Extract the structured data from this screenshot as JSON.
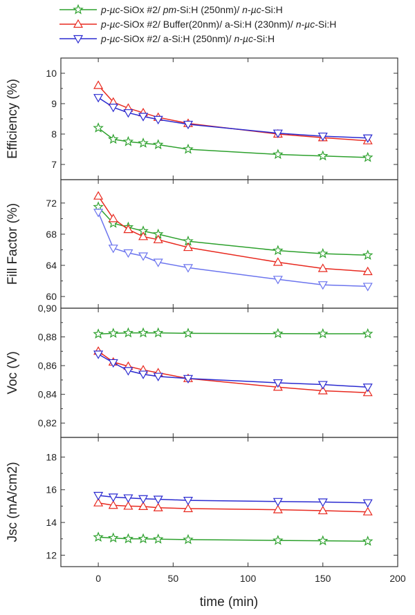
{
  "chart_data": {
    "type": "line",
    "title": "",
    "xlabel": "time (min)",
    "xlim": [
      -25,
      200
    ],
    "xticks": [
      "0",
      "50",
      "100",
      "150",
      "200"
    ],
    "x": [
      0,
      10,
      20,
      30,
      40,
      60,
      120,
      150,
      180
    ],
    "legend": [
      {
        "name": "p-µc-SiOx #2/ pm-Si:H (250nm)/ n-µc-Si:H",
        "color": "#2ca02c",
        "marker": "star",
        "parts": [
          [
            "p-µc",
            1
          ],
          [
            "-SiOx #2/ ",
            0
          ],
          [
            "pm",
            1
          ],
          [
            "-Si:H (250nm)/ ",
            0
          ],
          [
            "n-µc",
            1
          ],
          [
            "-Si:H",
            0
          ]
        ]
      },
      {
        "name": "p-µc-SiOx #2/ Buffer(20nm)/ a-Si:H (230nm)/ n-µc-Si:H",
        "color": "#e8281e",
        "marker": "triangle-up",
        "parts": [
          [
            "p-µc",
            1
          ],
          [
            "-SiOx #2/ Buffer(20nm)/ a-Si:H (230nm)/ ",
            0
          ],
          [
            "n-µc",
            1
          ],
          [
            "-Si:H",
            0
          ]
        ]
      },
      {
        "name": "p-µc-SiOx #2/ a-Si:H (250nm)/ n-µc-Si:H",
        "color": "#2a2ad0",
        "marker": "triangle-down",
        "parts": [
          [
            "p-µc",
            1
          ],
          [
            "-SiOx #2/ a-Si:H (250nm)/ ",
            0
          ],
          [
            "n-µc",
            1
          ],
          [
            "-Si:H",
            0
          ]
        ]
      }
    ],
    "panels": [
      {
        "ylabel": "Efficiency (%)",
        "ylim": [
          6.5,
          10.5
        ],
        "yticks": [
          7,
          8,
          9,
          10
        ],
        "ytick_labels": [
          "7",
          "8",
          "9",
          "10"
        ],
        "series": [
          {
            "name": "pm-Si:H (250nm)",
            "color": "#2ca02c",
            "marker": "star",
            "values": [
              8.2,
              7.83,
              7.75,
              7.7,
              7.65,
              7.5,
              7.33,
              7.28,
              7.23
            ]
          },
          {
            "name": "Buffer(20nm)/ a-Si:H (230nm)",
            "color": "#e8281e",
            "marker": "triangle-up",
            "values": [
              9.6,
              9.05,
              8.85,
              8.7,
              8.55,
              8.35,
              8.0,
              7.88,
              7.78
            ]
          },
          {
            "name": "a-Si:H (250nm)",
            "color": "#2a2ad0",
            "marker": "triangle-down",
            "values": [
              9.2,
              8.88,
              8.7,
              8.58,
              8.48,
              8.32,
              8.03,
              7.93,
              7.87
            ]
          }
        ]
      },
      {
        "ylabel": "Fill Factor (%)",
        "ylim": [
          58.5,
          75
        ],
        "yticks": [
          60,
          64,
          68,
          72
        ],
        "ytick_labels": [
          "60",
          "64",
          "68",
          "72"
        ],
        "series": [
          {
            "name": "pm-Si:H (250nm)",
            "color": "#2ca02c",
            "marker": "star",
            "values": [
              71.5,
              69.4,
              68.9,
              68.4,
              68.0,
              67.1,
              65.9,
              65.5,
              65.3
            ]
          },
          {
            "name": "Buffer(20nm)/ a-Si:H (230nm)",
            "color": "#e8281e",
            "marker": "triangle-up",
            "values": [
              72.9,
              70.0,
              68.6,
              67.7,
              67.3,
              66.3,
              64.4,
              63.6,
              63.2
            ]
          },
          {
            "name": "a-Si:H (250nm)",
            "color": "#6b74ee",
            "marker": "triangle-down",
            "values": [
              70.8,
              66.2,
              65.6,
              65.2,
              64.4,
              63.7,
              62.2,
              61.5,
              61.3
            ]
          }
        ]
      },
      {
        "ylabel": "Voc (V)",
        "ylim": [
          0.81,
          0.9
        ],
        "yticks": [
          0.82,
          0.84,
          0.86,
          0.88,
          0.9
        ],
        "ytick_labels": [
          "0,82",
          "0,84",
          "0,86",
          "0,88",
          "0,90"
        ],
        "series": [
          {
            "name": "pm-Si:H (250nm)",
            "color": "#2ca02c",
            "marker": "star",
            "values": [
              0.882,
              0.8825,
              0.8828,
              0.8828,
              0.8828,
              0.8825,
              0.8823,
              0.8822,
              0.8822
            ]
          },
          {
            "name": "Buffer(20nm)/ a-Si:H (230nm)",
            "color": "#e8281e",
            "marker": "triangle-up",
            "values": [
              0.87,
              0.8625,
              0.8595,
              0.857,
              0.855,
              0.851,
              0.845,
              0.8425,
              0.8412
            ]
          },
          {
            "name": "a-Si:H (250nm)",
            "color": "#2a2ad0",
            "marker": "triangle-down",
            "values": [
              0.868,
              0.862,
              0.8565,
              0.854,
              0.8525,
              0.851,
              0.848,
              0.8468,
              0.845
            ]
          }
        ]
      },
      {
        "ylabel": "Jsc (mA/cm2)",
        "ylim": [
          11.3,
          19.2
        ],
        "yticks": [
          12,
          14,
          16,
          18
        ],
        "ytick_labels": [
          "12",
          "14",
          "16",
          "18"
        ],
        "series": [
          {
            "name": "pm-Si:H (250nm)",
            "color": "#2ca02c",
            "marker": "star",
            "values": [
              13.1,
              13.05,
              13.0,
              13.0,
              12.98,
              12.95,
              12.9,
              12.88,
              12.85
            ]
          },
          {
            "name": "Buffer(20nm)/ a-Si:H (230nm)",
            "color": "#e8281e",
            "marker": "triangle-up",
            "values": [
              15.2,
              15.05,
              15.0,
              14.98,
              14.9,
              14.85,
              14.78,
              14.72,
              14.65
            ]
          },
          {
            "name": "a-Si:H (250nm)",
            "color": "#2a2ad0",
            "marker": "triangle-down",
            "values": [
              15.65,
              15.55,
              15.5,
              15.45,
              15.42,
              15.35,
              15.28,
              15.25,
              15.2
            ]
          }
        ]
      }
    ]
  }
}
